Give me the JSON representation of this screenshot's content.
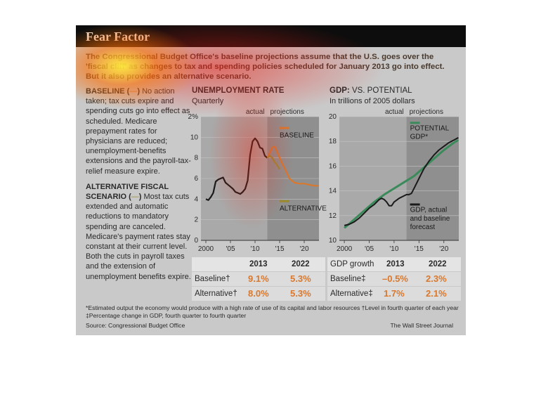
{
  "title": "Fear Factor",
  "intro": "The Congressional Budget Office's baseline projections assume that the U.S. goes over the 'fiscal cliff' as changes to tax and spending policies scheduled for January 2013 go into effect. But it also provides an alternative scenario.",
  "left": {
    "baseline_head": "BASELINE (",
    "baseline_dash": "—",
    "baseline_after": ")",
    "baseline_text": " No action taken; tax cuts expire and spending cuts go into effect as scheduled. Medicare prepayment rates for physicians are reduced; unemployment-benefits extensions and the payroll-tax-relief measure expire.",
    "alt_head": "ALTERNATIVE FISCAL SCENARIO (",
    "alt_dash": "—",
    "alt_after": ")",
    "alt_text": " Most tax cuts extended and automatic reductions to mandatory spending are canceled. Medicare's payment rates stay constant at their current level. Both the cuts in payroll taxes and the extension of unemployment benefits expire."
  },
  "unemp": {
    "title": "UNEMPLOYMENT RATE",
    "subtitle": "Quarterly",
    "actual_label": "actual",
    "projections_label": "projections",
    "baseline_label": "BASELINE",
    "alternative_label": "ALTERNATIVE"
  },
  "gdp": {
    "title_bold": "GDP:",
    "title_rest": " VS. POTENTIAL",
    "subtitle": "In trillions of 2005 dollars",
    "actual_label": "actual",
    "projections_label": "projections",
    "potential_label_1": "POTENTIAL",
    "potential_label_2": "GDP*",
    "actual_line_1": "GDP, actual",
    "actual_line_2": "and baseline",
    "actual_line_3": "forecast"
  },
  "table_left": {
    "headers": [
      "",
      "2013",
      "2022"
    ],
    "rows": [
      {
        "label": "Baseline†",
        "v2013": "9.1%",
        "v2022": "5.3%"
      },
      {
        "label": "Alternative†",
        "v2013": "8.0%",
        "v2022": "5.3%"
      }
    ]
  },
  "table_right": {
    "headers": [
      "GDP growth",
      "2013",
      "2022"
    ],
    "rows": [
      {
        "label": "Baseline‡",
        "v2013": "–0.5%",
        "v2022": "2.3%"
      },
      {
        "label": "Alternative‡",
        "v2013": "1.7%",
        "v2022": "2.1%"
      }
    ]
  },
  "footnote_1": "*Estimated output the economy would produce with a high rate of use of its capital and labor resources    †Level in fourth quarter of each year",
  "footnote_2": "‡Percentage change in GDP, fourth quarter to fourth quarter",
  "source": "Source: Congressional Budget Office",
  "credit": "The Wall Street Journal",
  "colors": {
    "baseline": "#d9782d",
    "alternative": "#9c8a2e",
    "actual": "#1a1a1a",
    "potential": "#3a8a5a",
    "projection_shade": "#8f8f8f",
    "plot_bg": "#a9a9a9"
  },
  "chart_data": [
    {
      "type": "line",
      "title": "UNEMPLOYMENT RATE",
      "subtitle": "Quarterly",
      "xlim": [
        1999,
        2023
      ],
      "ylim": [
        0,
        12
      ],
      "xticks": [
        2000,
        2005,
        2010,
        2015,
        2020
      ],
      "xtick_labels": [
        "2000",
        "'05",
        "'10",
        "'15",
        "'20"
      ],
      "yticks": [
        0,
        2,
        4,
        6,
        8,
        10,
        12
      ],
      "ytick_labels": [
        "0",
        "2",
        "4",
        "6",
        "8",
        "10",
        "12%"
      ],
      "projection_start": 2012.5,
      "series": [
        {
          "name": "actual",
          "x": [
            2000,
            2000.5,
            2001,
            2001.5,
            2002,
            2002.5,
            2003,
            2003.5,
            2004,
            2004.5,
            2005,
            2005.5,
            2006,
            2006.5,
            2007,
            2007.5,
            2008,
            2008.5,
            2009,
            2009.5,
            2010,
            2010.5,
            2011,
            2011.5,
            2012,
            2012.5
          ],
          "y": [
            4.0,
            3.9,
            4.2,
            4.6,
            5.7,
            5.9,
            6.0,
            6.1,
            5.6,
            5.4,
            5.2,
            5.0,
            4.7,
            4.6,
            4.5,
            4.7,
            5.0,
            5.8,
            8.3,
            9.6,
            9.9,
            9.6,
            9.0,
            8.9,
            8.2,
            8.0
          ]
        },
        {
          "name": "BASELINE",
          "x": [
            2012.5,
            2013,
            2013.5,
            2014,
            2014.5,
            2015,
            2016,
            2017,
            2018,
            2019,
            2020,
            2021,
            2022,
            2022.9
          ],
          "y": [
            8.0,
            8.5,
            9.0,
            9.1,
            8.6,
            8.0,
            7.0,
            6.0,
            5.6,
            5.5,
            5.5,
            5.4,
            5.3,
            5.3
          ]
        },
        {
          "name": "ALTERNATIVE",
          "x": [
            2012.5,
            2013,
            2013.5,
            2014,
            2014.5,
            2015
          ],
          "y": [
            8.0,
            8.2,
            8.0,
            7.6,
            7.3,
            6.9
          ]
        }
      ]
    },
    {
      "type": "line",
      "title": "GDP: VS. POTENTIAL",
      "subtitle": "In trillions of 2005 dollars",
      "xlim": [
        1999,
        2023
      ],
      "ylim": [
        10,
        20
      ],
      "xticks": [
        2000,
        2005,
        2010,
        2015,
        2020
      ],
      "xtick_labels": [
        "2000",
        "'05",
        "'10",
        "'15",
        "'20"
      ],
      "yticks": [
        10,
        12,
        14,
        16,
        18,
        20
      ],
      "projection_start": 2012.5,
      "series": [
        {
          "name": "POTENTIAL GDP*",
          "x": [
            2000,
            2002,
            2004,
            2006,
            2008,
            2010,
            2012,
            2014,
            2016,
            2018,
            2020,
            2022,
            2022.9
          ],
          "y": [
            11.0,
            11.7,
            12.4,
            13.1,
            13.7,
            14.2,
            14.7,
            15.2,
            15.9,
            16.6,
            17.3,
            17.9,
            18.1
          ]
        },
        {
          "name": "GDP, actual and baseline forecast",
          "x": [
            2000,
            2001,
            2002,
            2003,
            2004,
            2005,
            2006,
            2007,
            2007.5,
            2008,
            2008.5,
            2009,
            2009.5,
            2010,
            2011,
            2012,
            2012.5,
            2013,
            2013.5,
            2014,
            2015,
            2016,
            2017,
            2018,
            2019,
            2020,
            2021,
            2022,
            2022.9
          ],
          "y": [
            11.2,
            11.3,
            11.5,
            11.8,
            12.2,
            12.6,
            12.9,
            13.3,
            13.4,
            13.3,
            13.1,
            12.8,
            12.8,
            13.1,
            13.4,
            13.6,
            13.7,
            13.7,
            13.8,
            14.2,
            15.0,
            15.8,
            16.4,
            16.9,
            17.3,
            17.6,
            17.9,
            18.1,
            18.3
          ]
        }
      ]
    }
  ]
}
